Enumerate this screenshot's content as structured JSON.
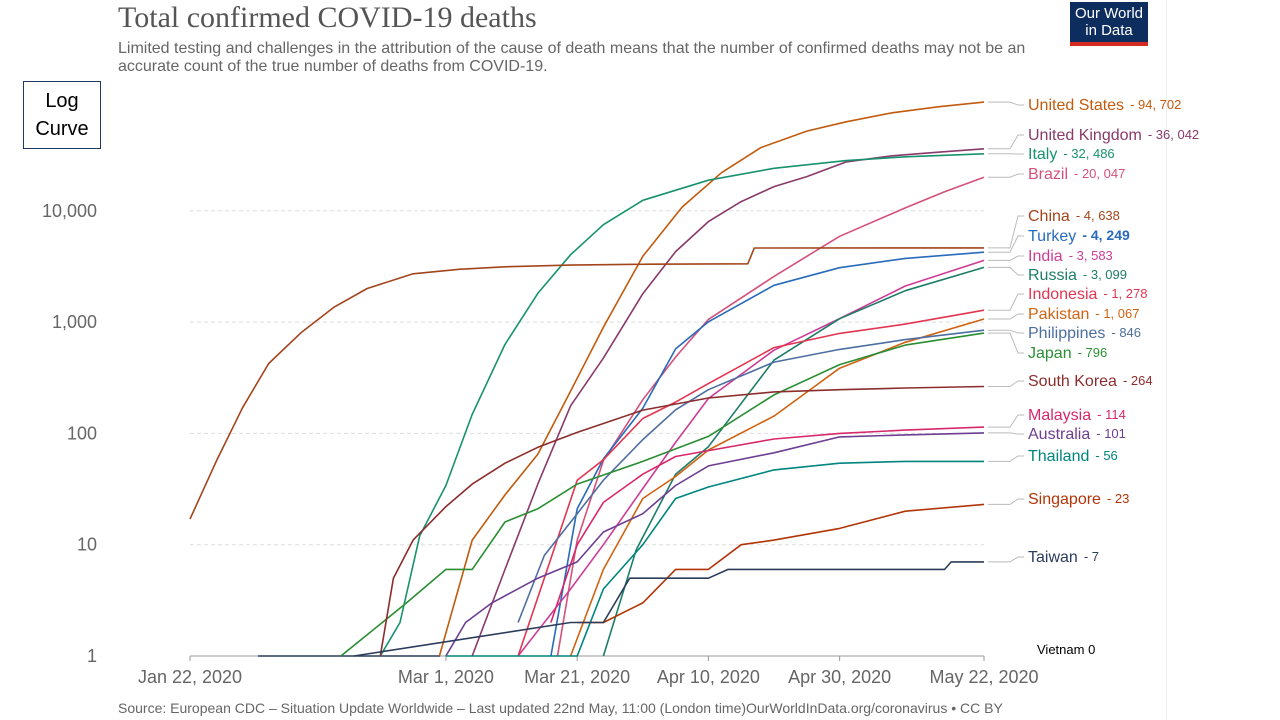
{
  "header": {
    "title": "Total confirmed COVID-19 deaths",
    "subtitle": "Limited testing and challenges in the attribution of the cause of death means that the number of confirmed deaths may not be an accurate count of the true number of deaths from COVID-19."
  },
  "logo": {
    "line1": "Our World",
    "line2": "in Data"
  },
  "scale_box": {
    "line1": "Log",
    "line2": "Curve"
  },
  "footer": {
    "source": "Source: European CDC – Situation Update Worldwide – Last updated 22nd May, 11:00 (London time)OurWorldInData.org/coronavirus • CC BY"
  },
  "chart_data": {
    "type": "line",
    "title": "Total confirmed COVID-19 deaths",
    "y_scale": "log",
    "ylim": [
      1,
      100000
    ],
    "yticks": [
      1,
      10,
      100,
      1000,
      10000
    ],
    "ytick_labels": [
      "1",
      "10",
      "100",
      "1,000",
      "10,000"
    ],
    "xlim": [
      "2020-01-22",
      "2020-05-22"
    ],
    "xticks": [
      "2020-01-22",
      "2020-03-01",
      "2020-03-21",
      "2020-04-10",
      "2020-04-30",
      "2020-05-22"
    ],
    "xtick_labels": [
      "Jan 22, 2020",
      "Mar 1, 2020",
      "Mar 21, 2020",
      "Apr 10, 2020",
      "Apr 30, 2020",
      "May 22, 2020"
    ],
    "grid": "horizontal-dashed",
    "legend": "right",
    "annotation": "Vietnam 0",
    "series": [
      {
        "name": "United States",
        "value_label": "- 94, 702",
        "color": "#c15b0e",
        "points": [
          [
            "2020-02-29",
            1
          ],
          [
            "2020-03-05",
            11
          ],
          [
            "2020-03-10",
            28
          ],
          [
            "2020-03-15",
            65
          ],
          [
            "2020-03-20",
            240
          ],
          [
            "2020-03-25",
            900
          ],
          [
            "2020-03-31",
            3900
          ],
          [
            "2020-04-06",
            10800
          ],
          [
            "2020-04-12",
            22000
          ],
          [
            "2020-04-18",
            37000
          ],
          [
            "2020-04-25",
            52000
          ],
          [
            "2020-05-01",
            63000
          ],
          [
            "2020-05-08",
            76000
          ],
          [
            "2020-05-15",
            86000
          ],
          [
            "2020-05-22",
            94702
          ]
        ]
      },
      {
        "name": "United Kingdom",
        "value_label": "- 36, 042",
        "color": "#883a6a",
        "points": [
          [
            "2020-03-05",
            1
          ],
          [
            "2020-03-10",
            6
          ],
          [
            "2020-03-15",
            35
          ],
          [
            "2020-03-20",
            177
          ],
          [
            "2020-03-25",
            475
          ],
          [
            "2020-03-31",
            1800
          ],
          [
            "2020-04-05",
            4300
          ],
          [
            "2020-04-10",
            8000
          ],
          [
            "2020-04-15",
            12100
          ],
          [
            "2020-04-20",
            16500
          ],
          [
            "2020-04-25",
            20300
          ],
          [
            "2020-05-01",
            27500
          ],
          [
            "2020-05-08",
            31200
          ],
          [
            "2020-05-15",
            33600
          ],
          [
            "2020-05-22",
            36042
          ]
        ]
      },
      {
        "name": "Italy",
        "value_label": "- 32, 486",
        "color": "#18926e",
        "points": [
          [
            "2020-02-20",
            1
          ],
          [
            "2020-02-23",
            2
          ],
          [
            "2020-02-26",
            12
          ],
          [
            "2020-03-01",
            34
          ],
          [
            "2020-03-05",
            148
          ],
          [
            "2020-03-10",
            631
          ],
          [
            "2020-03-15",
            1809
          ],
          [
            "2020-03-20",
            4032
          ],
          [
            "2020-03-25",
            7503
          ],
          [
            "2020-03-31",
            12428
          ],
          [
            "2020-04-10",
            18849
          ],
          [
            "2020-04-20",
            24114
          ],
          [
            "2020-05-01",
            28236
          ],
          [
            "2020-05-10",
            30560
          ],
          [
            "2020-05-22",
            32486
          ]
        ]
      },
      {
        "name": "Brazil",
        "value_label": "- 20, 047",
        "color": "#d4517a",
        "points": [
          [
            "2020-03-18",
            1
          ],
          [
            "2020-03-21",
            11
          ],
          [
            "2020-03-25",
            57
          ],
          [
            "2020-03-31",
            201
          ],
          [
            "2020-04-05",
            486
          ],
          [
            "2020-04-10",
            1057
          ],
          [
            "2020-04-20",
            2575
          ],
          [
            "2020-04-30",
            5901
          ],
          [
            "2020-05-10",
            10627
          ],
          [
            "2020-05-16",
            14817
          ],
          [
            "2020-05-22",
            20047
          ]
        ]
      },
      {
        "name": "China",
        "value_label": "- 4, 638",
        "color": "#a3451c",
        "points": [
          [
            "2020-01-22",
            17
          ],
          [
            "2020-01-26",
            56
          ],
          [
            "2020-01-30",
            170
          ],
          [
            "2020-02-03",
            425
          ],
          [
            "2020-02-08",
            811
          ],
          [
            "2020-02-13",
            1370
          ],
          [
            "2020-02-18",
            2004
          ],
          [
            "2020-02-25",
            2715
          ],
          [
            "2020-03-03",
            2984
          ],
          [
            "2020-03-10",
            3140
          ],
          [
            "2020-03-20",
            3255
          ],
          [
            "2020-04-01",
            3316
          ],
          [
            "2020-04-16",
            3342
          ],
          [
            "2020-04-17",
            4632
          ],
          [
            "2020-05-22",
            4638
          ]
        ]
      },
      {
        "name": "Turkey",
        "value_label": "- 4, 249",
        "color": "#286bbb",
        "points": [
          [
            "2020-03-17",
            1
          ],
          [
            "2020-03-21",
            21
          ],
          [
            "2020-03-25",
            59
          ],
          [
            "2020-03-31",
            168
          ],
          [
            "2020-04-05",
            574
          ],
          [
            "2020-04-10",
            1006
          ],
          [
            "2020-04-20",
            2140
          ],
          [
            "2020-04-30",
            3081
          ],
          [
            "2020-05-10",
            3739
          ],
          [
            "2020-05-22",
            4249
          ]
        ]
      },
      {
        "name": "India",
        "value_label": "- 3, 583",
        "color": "#cc3d98",
        "points": [
          [
            "2020-03-12",
            1
          ],
          [
            "2020-03-16",
            2
          ],
          [
            "2020-03-20",
            4
          ],
          [
            "2020-03-25",
            10
          ],
          [
            "2020-03-31",
            32
          ],
          [
            "2020-04-05",
            83
          ],
          [
            "2020-04-10",
            206
          ],
          [
            "2020-04-20",
            559
          ],
          [
            "2020-04-30",
            1075
          ],
          [
            "2020-05-10",
            2109
          ],
          [
            "2020-05-22",
            3583
          ]
        ]
      },
      {
        "name": "Russia",
        "value_label": "- 3, 099",
        "color": "#1e7d68",
        "points": [
          [
            "2020-03-25",
            1
          ],
          [
            "2020-03-30",
            9
          ],
          [
            "2020-04-05",
            43
          ],
          [
            "2020-04-10",
            76
          ],
          [
            "2020-04-20",
            456
          ],
          [
            "2020-04-30",
            1073
          ],
          [
            "2020-05-10",
            1915
          ],
          [
            "2020-05-22",
            3099
          ]
        ]
      },
      {
        "name": "Indonesia",
        "value_label": "- 1, 278",
        "color": "#e23650",
        "points": [
          [
            "2020-03-12",
            1
          ],
          [
            "2020-03-16",
            5
          ],
          [
            "2020-03-21",
            38
          ],
          [
            "2020-03-25",
            58
          ],
          [
            "2020-03-31",
            136
          ],
          [
            "2020-04-05",
            191
          ],
          [
            "2020-04-10",
            280
          ],
          [
            "2020-04-20",
            590
          ],
          [
            "2020-04-30",
            792
          ],
          [
            "2020-05-10",
            959
          ],
          [
            "2020-05-22",
            1278
          ]
        ]
      },
      {
        "name": "Pakistan",
        "value_label": "- 1, 067",
        "color": "#d06312",
        "points": [
          [
            "2020-03-20",
            1
          ],
          [
            "2020-03-25",
            6
          ],
          [
            "2020-03-31",
            26
          ],
          [
            "2020-04-05",
            41
          ],
          [
            "2020-04-10",
            71
          ],
          [
            "2020-04-20",
            143
          ],
          [
            "2020-04-30",
            385
          ],
          [
            "2020-05-10",
            659
          ],
          [
            "2020-05-22",
            1067
          ]
        ]
      },
      {
        "name": "Philippines",
        "value_label": "- 846",
        "color": "#4d6ea0",
        "points": [
          [
            "2020-03-12",
            2
          ],
          [
            "2020-03-16",
            8
          ],
          [
            "2020-03-21",
            19
          ],
          [
            "2020-03-25",
            38
          ],
          [
            "2020-03-31",
            88
          ],
          [
            "2020-04-05",
            163
          ],
          [
            "2020-04-10",
            247
          ],
          [
            "2020-04-20",
            437
          ],
          [
            "2020-04-30",
            568
          ],
          [
            "2020-05-10",
            696
          ],
          [
            "2020-05-22",
            846
          ]
        ]
      },
      {
        "name": "Japan",
        "value_label": "- 796",
        "color": "#2a8e33",
        "points": [
          [
            "2020-02-14",
            1
          ],
          [
            "2020-02-24",
            3
          ],
          [
            "2020-03-01",
            6
          ],
          [
            "2020-03-05",
            6
          ],
          [
            "2020-03-10",
            16
          ],
          [
            "2020-03-15",
            21
          ],
          [
            "2020-03-21",
            35
          ],
          [
            "2020-03-31",
            56
          ],
          [
            "2020-04-10",
            94
          ],
          [
            "2020-04-20",
            222
          ],
          [
            "2020-04-30",
            415
          ],
          [
            "2020-05-10",
            621
          ],
          [
            "2020-05-22",
            796
          ]
        ]
      },
      {
        "name": "South Korea",
        "value_label": "- 264",
        "color": "#8c2d2d",
        "points": [
          [
            "2020-02-20",
            1
          ],
          [
            "2020-02-22",
            5
          ],
          [
            "2020-02-25",
            11
          ],
          [
            "2020-03-01",
            22
          ],
          [
            "2020-03-05",
            35
          ],
          [
            "2020-03-10",
            54
          ],
          [
            "2020-03-15",
            75
          ],
          [
            "2020-03-21",
            102
          ],
          [
            "2020-03-31",
            162
          ],
          [
            "2020-04-10",
            208
          ],
          [
            "2020-04-20",
            236
          ],
          [
            "2020-04-30",
            247
          ],
          [
            "2020-05-10",
            256
          ],
          [
            "2020-05-22",
            264
          ]
        ]
      },
      {
        "name": "Malaysia",
        "value_label": "- 114",
        "color": "#d6286b",
        "points": [
          [
            "2020-03-17",
            2
          ],
          [
            "2020-03-21",
            10
          ],
          [
            "2020-03-25",
            24
          ],
          [
            "2020-03-31",
            43
          ],
          [
            "2020-04-05",
            62
          ],
          [
            "2020-04-10",
            70
          ],
          [
            "2020-04-20",
            89
          ],
          [
            "2020-04-30",
            100
          ],
          [
            "2020-05-10",
            107
          ],
          [
            "2020-05-22",
            114
          ]
        ]
      },
      {
        "name": "Australia",
        "value_label": "- 101",
        "color": "#6d3e91",
        "points": [
          [
            "2020-03-01",
            1
          ],
          [
            "2020-03-04",
            2
          ],
          [
            "2020-03-08",
            3
          ],
          [
            "2020-03-15",
            5
          ],
          [
            "2020-03-21",
            7
          ],
          [
            "2020-03-25",
            13
          ],
          [
            "2020-03-31",
            19
          ],
          [
            "2020-04-05",
            34
          ],
          [
            "2020-04-10",
            51
          ],
          [
            "2020-04-20",
            67
          ],
          [
            "2020-04-30",
            93
          ],
          [
            "2020-05-10",
            97
          ],
          [
            "2020-05-22",
            101
          ]
        ]
      },
      {
        "name": "Thailand",
        "value_label": "- 56",
        "color": "#00847e",
        "points": [
          [
            "2020-03-01",
            1
          ],
          [
            "2020-03-16",
            1
          ],
          [
            "2020-03-21",
            1
          ],
          [
            "2020-03-25",
            4
          ],
          [
            "2020-03-31",
            10
          ],
          [
            "2020-04-05",
            26
          ],
          [
            "2020-04-10",
            33
          ],
          [
            "2020-04-20",
            47
          ],
          [
            "2020-04-30",
            54
          ],
          [
            "2020-05-10",
            56
          ],
          [
            "2020-05-22",
            56
          ]
        ]
      },
      {
        "name": "Singapore",
        "value_label": "- 23",
        "color": "#b13507",
        "points": [
          [
            "2020-03-21",
            2
          ],
          [
            "2020-03-25",
            2
          ],
          [
            "2020-03-31",
            3
          ],
          [
            "2020-04-05",
            6
          ],
          [
            "2020-04-10",
            6
          ],
          [
            "2020-04-15",
            10
          ],
          [
            "2020-04-20",
            11
          ],
          [
            "2020-04-30",
            14
          ],
          [
            "2020-05-10",
            20
          ],
          [
            "2020-05-22",
            23
          ]
        ]
      },
      {
        "name": "Taiwan",
        "value_label": "- 7",
        "color": "#2c3c5c",
        "points": [
          [
            "2020-02-16",
            1
          ],
          [
            "2020-03-20",
            2
          ],
          [
            "2020-03-25",
            2
          ],
          [
            "2020-03-29",
            5
          ],
          [
            "2020-04-10",
            5
          ],
          [
            "2020-04-13",
            6
          ],
          [
            "2020-05-16",
            6
          ],
          [
            "2020-05-17",
            7
          ],
          [
            "2020-05-22",
            7
          ]
        ]
      }
    ]
  }
}
